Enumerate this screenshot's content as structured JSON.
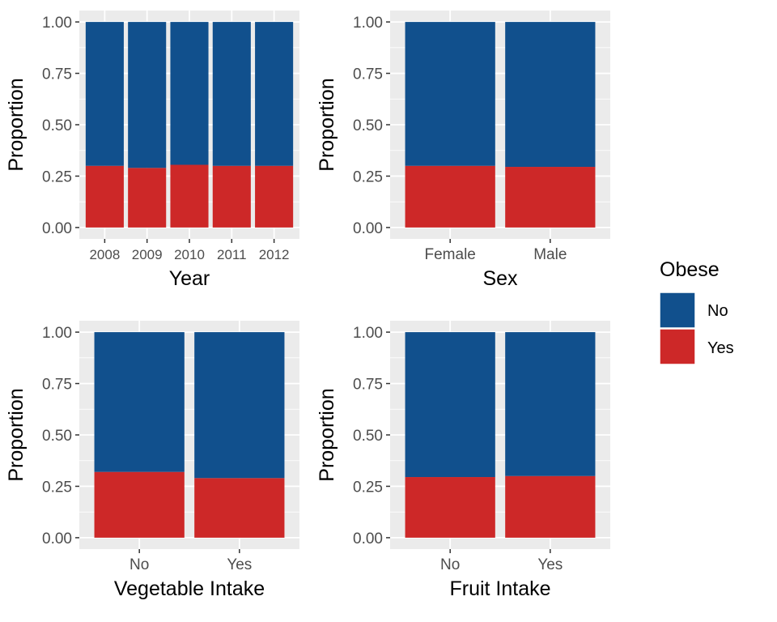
{
  "colors": {
    "no": "#11508D",
    "yes": "#CD2828",
    "panel": "#EBEBEB",
    "grid": "#FFFFFF"
  },
  "legend": {
    "title": "Obese",
    "items": [
      {
        "label": "No",
        "color": "#11508D"
      },
      {
        "label": "Yes",
        "color": "#CD2828"
      }
    ]
  },
  "chart_data": [
    {
      "type": "bar",
      "stacked": true,
      "xlabel": "Year",
      "ylabel": "Proportion",
      "ylim": [
        0,
        1
      ],
      "yticks": [
        "0.00",
        "0.25",
        "0.50",
        "0.75",
        "1.00"
      ],
      "categories": [
        "2008",
        "2009",
        "2010",
        "2011",
        "2012"
      ],
      "series": [
        {
          "name": "No",
          "values": [
            0.7,
            0.71,
            0.695,
            0.7,
            0.7
          ]
        },
        {
          "name": "Yes",
          "values": [
            0.3,
            0.29,
            0.305,
            0.3,
            0.3
          ]
        }
      ],
      "grid": true
    },
    {
      "type": "bar",
      "stacked": true,
      "xlabel": "Sex",
      "ylabel": "Proportion",
      "ylim": [
        0,
        1
      ],
      "yticks": [
        "0.00",
        "0.25",
        "0.50",
        "0.75",
        "1.00"
      ],
      "categories": [
        "Female",
        "Male"
      ],
      "series": [
        {
          "name": "No",
          "values": [
            0.7,
            0.705
          ]
        },
        {
          "name": "Yes",
          "values": [
            0.3,
            0.295
          ]
        }
      ],
      "grid": true
    },
    {
      "type": "bar",
      "stacked": true,
      "xlabel": "Vegetable Intake",
      "ylabel": "Proportion",
      "ylim": [
        0,
        1
      ],
      "yticks": [
        "0.00",
        "0.25",
        "0.50",
        "0.75",
        "1.00"
      ],
      "categories": [
        "No",
        "Yes"
      ],
      "series": [
        {
          "name": "No",
          "values": [
            0.68,
            0.71
          ]
        },
        {
          "name": "Yes",
          "values": [
            0.32,
            0.29
          ]
        }
      ],
      "grid": true
    },
    {
      "type": "bar",
      "stacked": true,
      "xlabel": "Fruit Intake",
      "ylabel": "Proportion",
      "ylim": [
        0,
        1
      ],
      "yticks": [
        "0.00",
        "0.25",
        "0.50",
        "0.75",
        "1.00"
      ],
      "categories": [
        "No",
        "Yes"
      ],
      "series": [
        {
          "name": "No",
          "values": [
            0.705,
            0.7
          ]
        },
        {
          "name": "Yes",
          "values": [
            0.295,
            0.3
          ]
        }
      ],
      "grid": true
    }
  ]
}
